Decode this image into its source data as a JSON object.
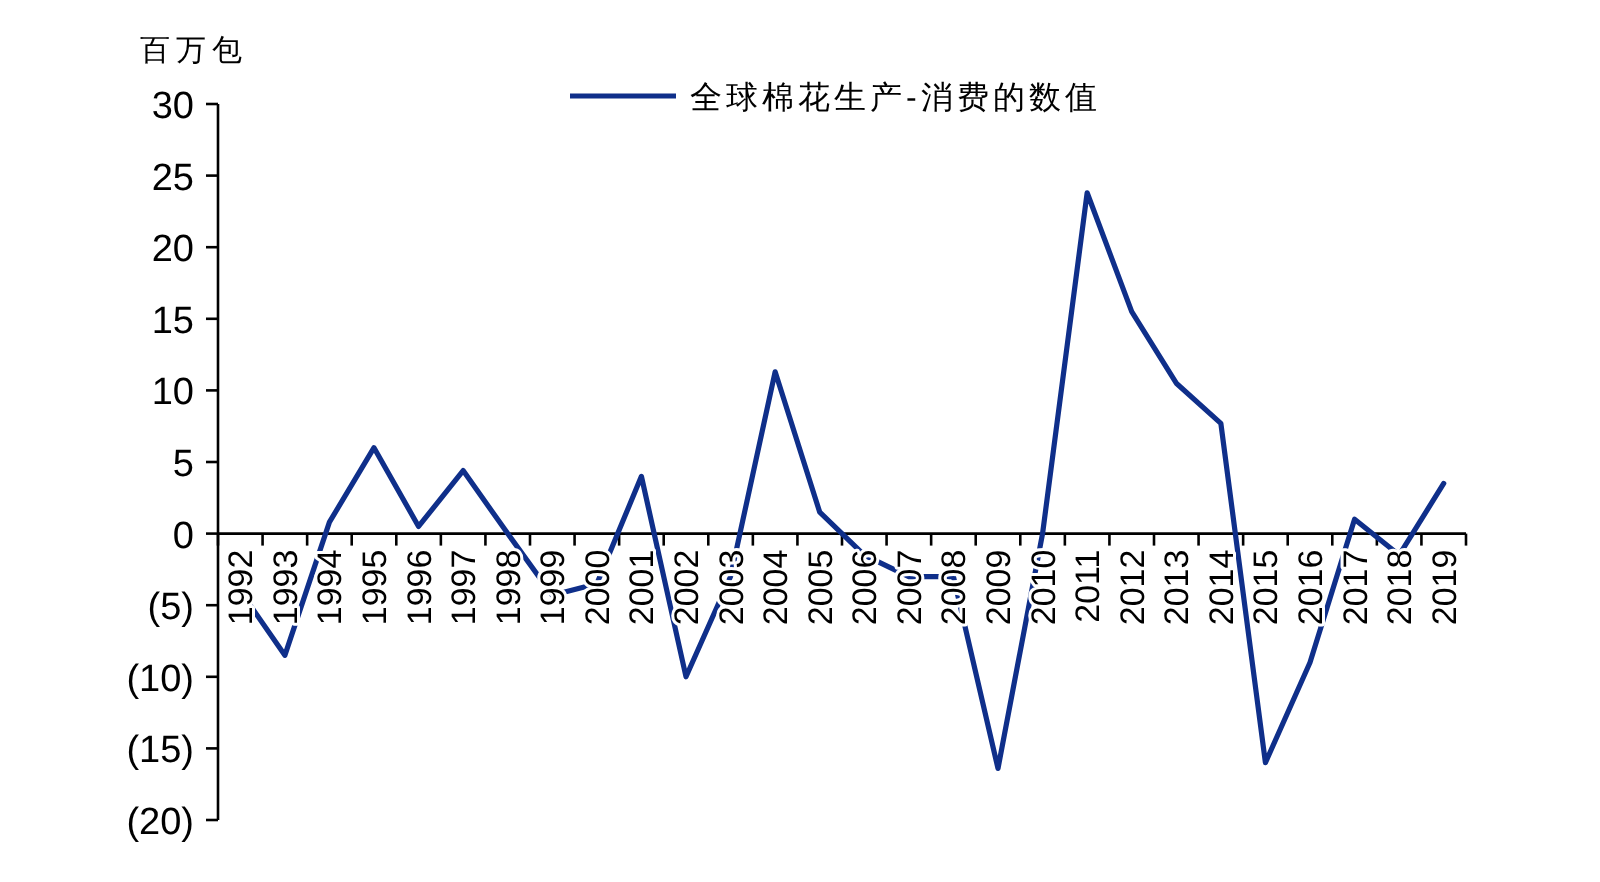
{
  "chart_data": {
    "type": "line",
    "ylabel": "百万包",
    "legend": "top",
    "categories": [
      "1992",
      "1993",
      "1994",
      "1995",
      "1996",
      "1997",
      "1998",
      "1999",
      "2000",
      "2001",
      "2002",
      "2003",
      "2004",
      "2005",
      "2006",
      "2007",
      "2008",
      "2009",
      "2010",
      "2011",
      "2012",
      "2013",
      "2014",
      "2015",
      "2016",
      "2017",
      "2018",
      "2019"
    ],
    "series": [
      {
        "name": "全球棉花生产-消费的数值",
        "color": "#0f2f8a",
        "values": [
          -4,
          -8.5,
          0.8,
          6,
          0.5,
          4.4,
          0,
          -4.3,
          -3.5,
          4,
          -10,
          -3,
          11.3,
          1.5,
          -1.5,
          -3,
          -3,
          -16.4,
          0,
          23.8,
          15.5,
          10.5,
          7.7,
          -16,
          -9,
          1,
          -1.5,
          3.5
        ]
      }
    ],
    "ylim": [
      -20,
      30
    ],
    "yticks": [
      30,
      25,
      20,
      15,
      10,
      5,
      0,
      {
        "value": -5,
        "label": "(5)"
      },
      {
        "value": -10,
        "label": "(10)"
      },
      {
        "value": -15,
        "label": "(15)"
      },
      {
        "value": -20,
        "label": "(20)"
      }
    ],
    "grid": false,
    "marker": "none",
    "line_style": "solid"
  }
}
